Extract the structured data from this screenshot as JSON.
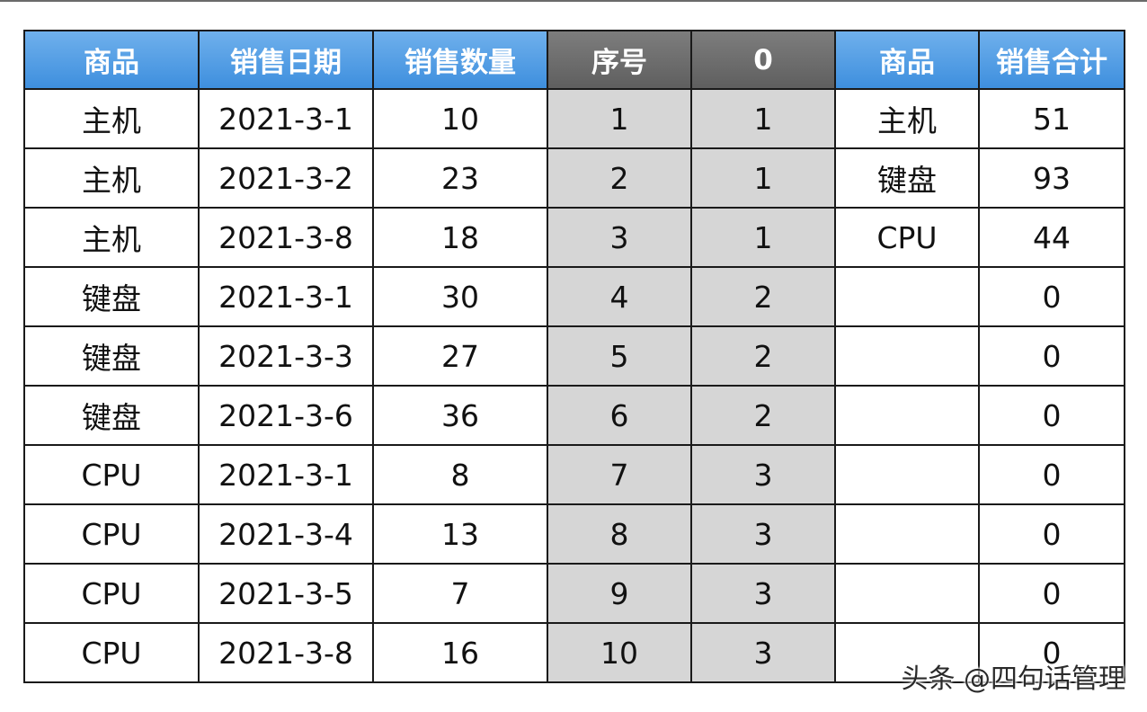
{
  "headers": [
    "商品",
    "销售日期",
    "销售数量",
    "序号",
    "0",
    "商品",
    "销售合计"
  ],
  "rows": [
    [
      "主机",
      "2021-3-1",
      "10",
      "1",
      "1",
      "主机",
      "51"
    ],
    [
      "主机",
      "2021-3-2",
      "23",
      "2",
      "1",
      "键盘",
      "93"
    ],
    [
      "主机",
      "2021-3-8",
      "18",
      "3",
      "1",
      "CPU",
      "44"
    ],
    [
      "键盘",
      "2021-3-1",
      "30",
      "4",
      "2",
      "",
      "0"
    ],
    [
      "键盘",
      "2021-3-3",
      "27",
      "5",
      "2",
      "",
      "0"
    ],
    [
      "键盘",
      "2021-3-6",
      "36",
      "6",
      "2",
      "",
      "0"
    ],
    [
      "CPU",
      "2021-3-1",
      "8",
      "7",
      "3",
      "",
      "0"
    ],
    [
      "CPU",
      "2021-3-4",
      "13",
      "8",
      "3",
      "",
      "0"
    ],
    [
      "CPU",
      "2021-3-5",
      "7",
      "9",
      "3",
      "",
      "0"
    ],
    [
      "CPU",
      "2021-3-8",
      "16",
      "10",
      "3",
      "",
      "0"
    ]
  ],
  "watermark": "头条 @四句话管理",
  "colors": {
    "header_blue": "#4a97e2",
    "header_gray": "#6e6e6e",
    "helper_column_fill": "#d6d6d6"
  }
}
